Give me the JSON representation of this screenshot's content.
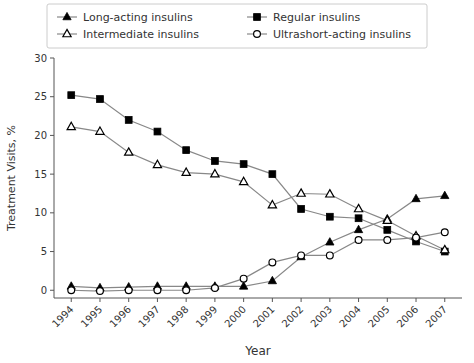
{
  "chart_data": {
    "type": "line",
    "xlabel": "Year",
    "ylabel": "Treatment Visits, %",
    "x": [
      1994,
      1995,
      1996,
      1997,
      1998,
      1999,
      2000,
      2001,
      2002,
      2003,
      2004,
      2005,
      2006,
      2007
    ],
    "xlim": [
      1993.4,
      2007.6
    ],
    "xticks": [
      1994,
      1995,
      1996,
      1997,
      1998,
      1999,
      2000,
      2001,
      2002,
      2003,
      2004,
      2005,
      2006,
      2007
    ],
    "ylim": [
      -1,
      30
    ],
    "yticks": [
      0,
      5,
      10,
      15,
      20,
      25,
      30
    ],
    "grid": false,
    "legend": "top",
    "color": "#000000",
    "series": [
      {
        "name": "Long-acting insulins",
        "color": "#888888",
        "marker": "triangle",
        "values": [
          0.5,
          0.3,
          0.4,
          0.5,
          0.5,
          0.5,
          0.5,
          1.2,
          4.3,
          6.2,
          7.8,
          9.2,
          11.8,
          12.2
        ]
      },
      {
        "name": "Regular insulins",
        "color": "#888888",
        "marker": "square",
        "values": [
          25.2,
          24.7,
          22.0,
          20.5,
          18.1,
          16.7,
          16.3,
          15.0,
          10.5,
          9.5,
          9.3,
          7.8,
          6.3,
          5.0
        ]
      },
      {
        "name": "Intermediate insulins",
        "color": "#888888",
        "marker": "triangle-open",
        "values": [
          21.1,
          20.5,
          17.8,
          16.2,
          15.2,
          15.0,
          14.0,
          11.0,
          12.5,
          12.4,
          10.5,
          9.0,
          7.0,
          5.2
        ]
      },
      {
        "name": "Ultrashort-acting insulins",
        "color": "#888888",
        "marker": "circle-open",
        "values": [
          0.0,
          -0.1,
          0.0,
          0.0,
          0.0,
          0.3,
          1.5,
          3.6,
          4.5,
          4.5,
          6.5,
          6.5,
          6.8,
          7.5
        ]
      }
    ]
  }
}
